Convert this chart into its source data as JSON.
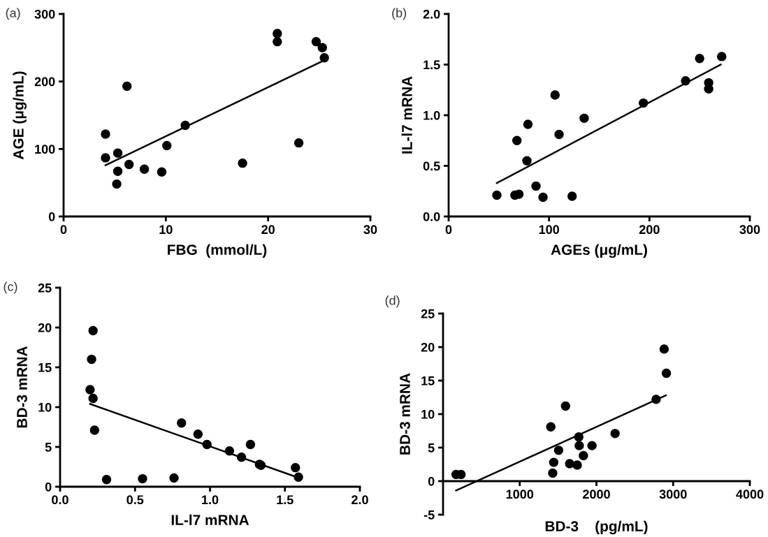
{
  "chart_data": [
    {
      "type": "scatter",
      "xlabel": "FBG  (mmol/L)",
      "ylabel": "AGE (μg/mL)",
      "annotations": [
        "(a)"
      ],
      "xlim": [
        0,
        30
      ],
      "ylim": [
        0,
        300
      ],
      "xticks": [
        0,
        10,
        20,
        30
      ],
      "yticks": [
        0,
        100,
        200,
        300
      ],
      "grid": false,
      "series": [
        {
          "type": "scatter",
          "marker": "circle",
          "color": "#000000",
          "x": [
            4.1,
            4.1,
            5.3,
            5.3,
            5.2,
            6.2,
            6.4,
            7.9,
            9.6,
            10.1,
            11.9,
            17.5,
            20.9,
            20.9,
            23,
            24.7,
            25.3,
            25.5
          ],
          "values": [
            122,
            87,
            94,
            67,
            48,
            193,
            77,
            70,
            66,
            105,
            135,
            79,
            271,
            259,
            109,
            259,
            250,
            235
          ]
        },
        {
          "type": "line",
          "color": "#000000",
          "line_style": "solid",
          "x": [
            4.1,
            25.3
          ],
          "values": [
            76,
            230
          ]
        }
      ]
    },
    {
      "type": "scatter",
      "xlabel": "AGEs (μg/mL)",
      "ylabel": "IL-l7 mRNA",
      "annotations": [
        "(b)"
      ],
      "xlim": [
        0,
        300
      ],
      "ylim": [
        0,
        2.0
      ],
      "xticks": [
        0,
        100,
        200,
        300
      ],
      "yticks": [
        {
          "value": 0,
          "label": "0.0"
        },
        0.5,
        {
          "value": 1,
          "label": "1.0"
        },
        1.5,
        {
          "value": 2,
          "label": "2.0"
        }
      ],
      "grid": false,
      "series": [
        {
          "type": "scatter",
          "marker": "circle",
          "color": "#000000",
          "x": [
            48,
            66,
            70,
            68,
            79,
            78,
            87,
            94,
            106,
            110,
            123,
            135,
            194,
            236,
            250,
            259,
            259,
            272
          ],
          "values": [
            0.21,
            0.21,
            0.22,
            0.75,
            0.91,
            0.55,
            0.3,
            0.19,
            1.2,
            0.81,
            0.2,
            0.97,
            1.12,
            1.34,
            1.56,
            1.32,
            1.26,
            1.58
          ]
        },
        {
          "type": "line",
          "color": "#000000",
          "line_style": "solid",
          "x": [
            48,
            271
          ],
          "values": [
            0.33,
            1.5
          ]
        }
      ]
    },
    {
      "type": "scatter",
      "xlabel": "IL-l7 mRNA",
      "ylabel": "BD-3 mRNA",
      "annotations": [
        "(c)"
      ],
      "xlim": [
        0,
        2.0
      ],
      "ylim": [
        0,
        25
      ],
      "xticks": [
        {
          "value": 0,
          "label": "0.0"
        },
        0.5,
        {
          "value": 1,
          "label": "1.0"
        },
        1.5,
        {
          "value": 2,
          "label": "2.0"
        }
      ],
      "yticks": [
        0,
        5,
        10,
        15,
        20,
        25
      ],
      "grid": false,
      "series": [
        {
          "type": "scatter",
          "marker": "circle",
          "color": "#000000",
          "x": [
            0.22,
            0.21,
            0.2,
            0.22,
            0.23,
            0.31,
            0.55,
            0.76,
            0.81,
            0.92,
            0.98,
            1.13,
            1.21,
            1.27,
            1.33,
            1.34,
            1.57,
            1.59
          ],
          "values": [
            19.6,
            16.0,
            12.2,
            11.1,
            7.1,
            0.9,
            1.0,
            1.1,
            8.0,
            6.6,
            5.3,
            4.5,
            3.7,
            5.3,
            2.8,
            2.7,
            2.4,
            1.2
          ]
        },
        {
          "type": "line",
          "color": "#000000",
          "line_style": "solid",
          "x": [
            0.2,
            1.58
          ],
          "values": [
            10.4,
            1.2
          ]
        }
      ]
    },
    {
      "type": "scatter",
      "xlabel": "BD-3    (pg/mL)",
      "ylabel": "BD-3 mRNA",
      "annotations": [
        "(d)"
      ],
      "xlim": [
        0,
        4000
      ],
      "ylim": [
        -5,
        25
      ],
      "xticks": [
        1000,
        2000,
        3000,
        4000
      ],
      "yticks": [
        -5,
        0,
        5,
        10,
        15,
        20,
        25
      ],
      "grid": false,
      "series": [
        {
          "type": "scatter",
          "marker": "circle",
          "color": "#000000",
          "x": [
            170,
            234,
            1405,
            1430,
            1443,
            1507,
            1597,
            1651,
            1750,
            1770,
            1776,
            1830,
            1942,
            2243,
            2778,
            2883,
            2912
          ],
          "values": [
            1.0,
            1.0,
            8.1,
            1.2,
            2.8,
            4.6,
            11.2,
            2.6,
            2.4,
            6.6,
            5.3,
            3.8,
            5.3,
            7.1,
            12.2,
            19.7,
            16.1
          ]
        },
        {
          "type": "line",
          "color": "#000000",
          "line_style": "solid",
          "x": [
            170,
            2906
          ],
          "values": [
            -1.4,
            12.8
          ]
        }
      ]
    }
  ]
}
